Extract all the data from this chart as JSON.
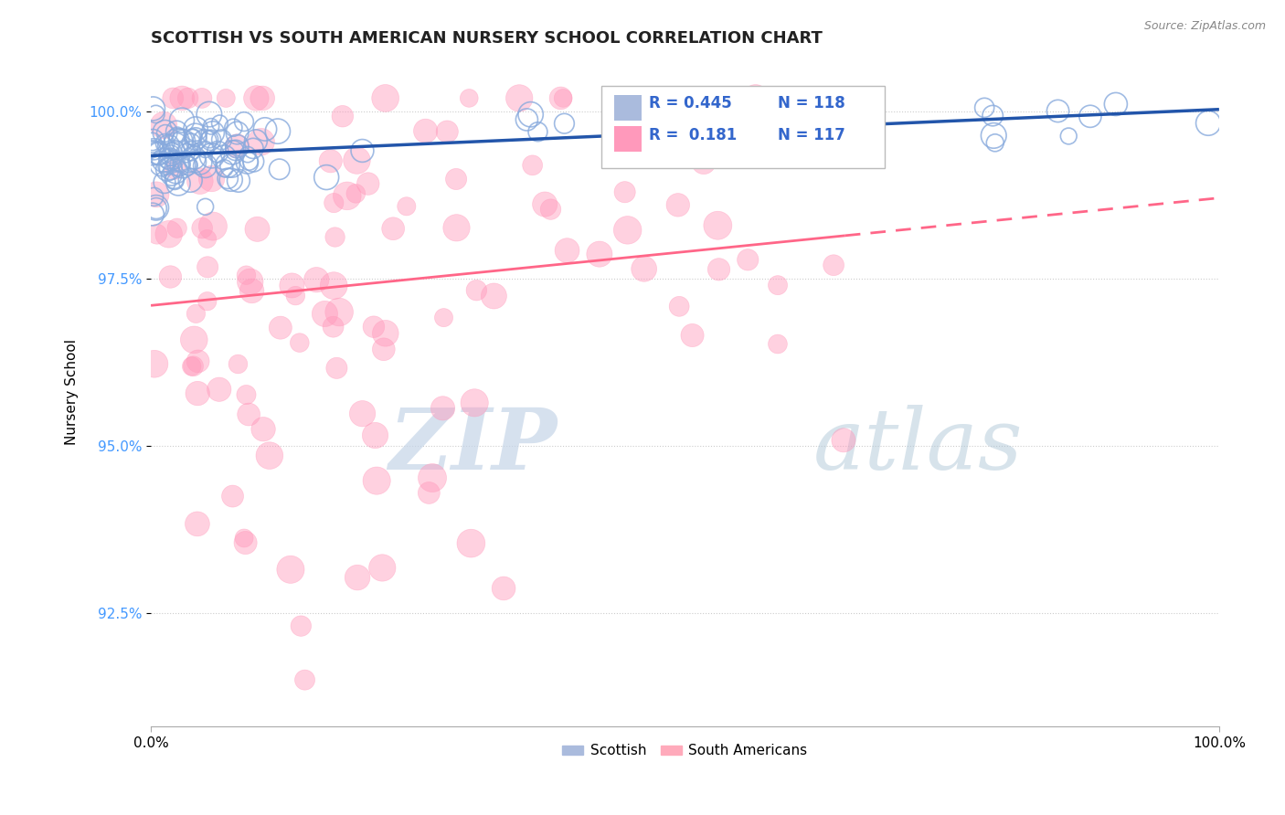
{
  "title": "SCOTTISH VS SOUTH AMERICAN NURSERY SCHOOL CORRELATION CHART",
  "source": "Source: ZipAtlas.com",
  "ylabel": "Nursery School",
  "legend_R_scottish": "R = 0.445",
  "legend_N_scottish": "N = 118",
  "legend_R_south": "R =  0.181",
  "legend_N_south": "N = 117",
  "scottish_color": "#88aadd",
  "south_color": "#ff99bb",
  "scottish_line_color": "#2255aa",
  "south_line_color": "#ff6688",
  "watermark_zip": "ZIP",
  "watermark_atlas": "atlas",
  "watermark_zip_color": "#ccddee",
  "watermark_atlas_color": "#aabbcc",
  "background_color": "#ffffff",
  "grid_color": "#cccccc",
  "ytick_color": "#4499ff",
  "legend_border_color": "#cccccc",
  "legend_bg": "#ffffff"
}
